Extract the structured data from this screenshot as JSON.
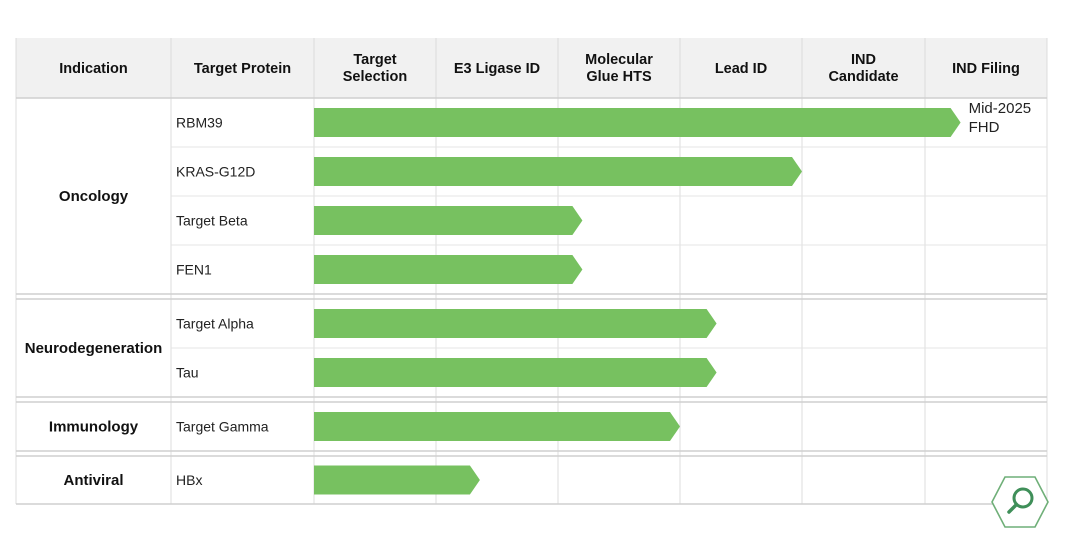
{
  "chart_data": {
    "type": "bar",
    "orientation": "horizontal",
    "columns": [
      "Indication",
      "Target Protein",
      "Target Selection",
      "E3 Ligase ID",
      "Molecular Glue HTS",
      "Lead ID",
      "IND Candidate",
      "IND Filing"
    ],
    "stages": [
      "Target Selection",
      "E3 Ligase ID",
      "Molecular Glue HTS",
      "Lead ID",
      "IND Candidate",
      "IND Filing"
    ],
    "groups": [
      {
        "indication": "Oncology",
        "rows": [
          {
            "protein": "RBM39",
            "progress": 5.3,
            "note": [
              "Mid-2025",
              "FHD"
            ]
          },
          {
            "protein": "KRAS-G12D",
            "progress": 4.0
          },
          {
            "protein": "Target Beta",
            "progress": 2.2
          },
          {
            "protein": "FEN1",
            "progress": 2.2
          }
        ]
      },
      {
        "indication": "Neurodegeneration",
        "rows": [
          {
            "protein": "Target Alpha",
            "progress": 3.3
          },
          {
            "protein": "Tau",
            "progress": 3.3
          }
        ]
      },
      {
        "indication": "Immunology",
        "rows": [
          {
            "protein": "Target Gamma",
            "progress": 3.0
          }
        ]
      },
      {
        "indication": "Antiviral",
        "rows": [
          {
            "protein": "HBx",
            "progress": 1.36
          }
        ]
      }
    ],
    "xlim": [
      0,
      6
    ],
    "colors": {
      "bar_start": "#4f9a83",
      "bar_end": "#77c160",
      "header_bg": "#f1f1f1"
    }
  },
  "controls": {
    "zoom_icon": "magnifier-icon"
  }
}
